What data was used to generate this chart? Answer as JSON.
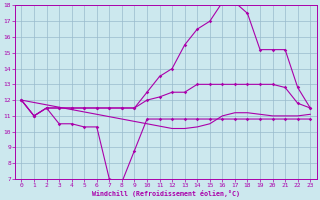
{
  "xlabel": "Windchill (Refroidissement éolien,°C)",
  "xlim": [
    -0.5,
    23.5
  ],
  "ylim": [
    7,
    18
  ],
  "xticks": [
    0,
    1,
    2,
    3,
    4,
    5,
    6,
    7,
    8,
    9,
    10,
    11,
    12,
    13,
    14,
    15,
    16,
    17,
    18,
    19,
    20,
    21,
    22,
    23
  ],
  "yticks": [
    7,
    8,
    9,
    10,
    11,
    12,
    13,
    14,
    15,
    16,
    17,
    18
  ],
  "background_color": "#cce8ee",
  "line_color": "#aa00aa",
  "grid_color": "#99bbcc",
  "curve1_x": [
    0,
    1,
    2,
    3,
    4,
    5,
    6,
    7,
    8,
    9,
    10,
    11,
    12,
    13,
    14,
    15,
    16,
    17,
    18,
    19,
    20,
    21,
    22,
    23
  ],
  "curve1_y": [
    12,
    11,
    11.5,
    10.5,
    10.5,
    10.3,
    10.3,
    7.0,
    6.8,
    8.8,
    10.8,
    10.8,
    10.8,
    10.8,
    10.8,
    10.8,
    10.8,
    10.8,
    10.8,
    10.8,
    10.8,
    10.8,
    10.8,
    10.8
  ],
  "curve2_x": [
    0,
    1,
    2,
    3,
    4,
    5,
    6,
    7,
    8,
    9,
    10,
    11,
    12,
    13,
    14,
    15,
    16,
    17,
    18,
    19,
    20,
    21,
    22,
    23
  ],
  "curve2_y": [
    12,
    11,
    11.5,
    11.5,
    11.5,
    11.5,
    11.5,
    11.5,
    11.5,
    11.5,
    12.0,
    12.2,
    12.5,
    12.5,
    13.0,
    13.0,
    13.0,
    13.0,
    13.0,
    13.0,
    13.0,
    12.8,
    11.8,
    11.5
  ],
  "curve3_x": [
    0,
    1,
    2,
    3,
    4,
    5,
    6,
    7,
    8,
    9,
    10,
    11,
    12,
    13,
    14,
    15,
    16,
    17,
    18,
    19,
    20,
    21,
    22,
    23
  ],
  "curve3_y": [
    12,
    11,
    11.5,
    11.5,
    11.5,
    11.5,
    11.5,
    11.5,
    11.5,
    11.5,
    12.5,
    13.5,
    14.0,
    15.5,
    16.5,
    17.0,
    18.2,
    18.2,
    17.5,
    15.2,
    15.2,
    15.2,
    12.8,
    11.5
  ],
  "curve4_x": [
    0,
    1,
    2,
    3,
    4,
    5,
    6,
    7,
    8,
    9,
    10,
    11,
    12,
    13,
    14,
    15,
    16,
    17,
    18,
    19,
    20,
    21,
    22,
    23
  ],
  "curve4_y": [
    12,
    11.85,
    11.7,
    11.55,
    11.4,
    11.25,
    11.1,
    10.95,
    10.8,
    10.65,
    10.5,
    10.35,
    10.2,
    10.2,
    10.3,
    10.5,
    11.0,
    11.2,
    11.2,
    11.1,
    11.0,
    11.0,
    11.0,
    11.1
  ]
}
